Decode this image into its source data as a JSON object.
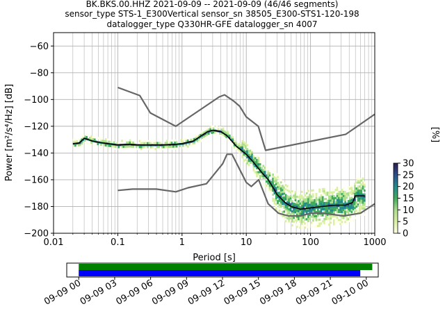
{
  "title_lines": [
    "BK.BKS.00.HHZ   2021-09-09 -- 2021-09-09  (46/46 segments)",
    "sensor_type STS-1_E300Vertical sensor_sn 38505_E300-STS1-120-198",
    "datalogger_type Q330HR-GFE datalogger_sn 4007"
  ],
  "chart_data": [
    {
      "type": "line",
      "subtype": "probabilistic-psd",
      "xlabel": "Period [s]",
      "ylabel": "Power [m²/s⁴/Hz] [dB]",
      "xscale": "log",
      "xlim": [
        0.01,
        1000
      ],
      "ylim": [
        -200,
        -50
      ],
      "xtick_labels": [
        "0.01",
        "0.1",
        "1",
        "10",
        "100",
        "1000"
      ],
      "xticks": [
        0.01,
        0.1,
        1,
        10,
        100,
        1000
      ],
      "yticks": [
        -60,
        -80,
        -100,
        -120,
        -140,
        -160,
        -180,
        -200
      ],
      "grid": true,
      "colorbar": {
        "label": "[%]",
        "ticks": [
          0,
          5,
          10,
          15,
          20,
          25,
          30
        ],
        "range": [
          0,
          30
        ],
        "colors": [
          "#ffffe5",
          "#d9f0a3",
          "#addd8e",
          "#41ab5d",
          "#238b8e",
          "#2c4f8c",
          "#2d1b4e"
        ]
      },
      "series": [
        {
          "name": "noise_model_high",
          "color": "#666666",
          "points": [
            [
              0.1,
              -91
            ],
            [
              0.22,
              -97
            ],
            [
              0.32,
              -110
            ],
            [
              0.8,
              -120
            ],
            [
              3.8,
              -98
            ],
            [
              4.6,
              -96.5
            ],
            [
              6.3,
              -101
            ],
            [
              7.9,
              -105
            ],
            [
              10,
              -113
            ],
            [
              15.4,
              -120
            ],
            [
              20,
              -138
            ],
            [
              354.8,
              -126
            ],
            [
              1000,
              -111
            ]
          ]
        },
        {
          "name": "noise_model_low",
          "color": "#666666",
          "points": [
            [
              0.1,
              -168
            ],
            [
              0.17,
              -167
            ],
            [
              0.4,
              -167
            ],
            [
              0.8,
              -169
            ],
            [
              1.24,
              -166
            ],
            [
              2.4,
              -163
            ],
            [
              4.3,
              -148
            ],
            [
              5,
              -141
            ],
            [
              6,
              -141
            ],
            [
              10,
              -162
            ],
            [
              12,
              -165
            ],
            [
              15.6,
              -160
            ],
            [
              21.9,
              -178
            ],
            [
              31.6,
              -185
            ],
            [
              45,
              -187
            ],
            [
              70,
              -187
            ],
            [
              101,
              -185
            ],
            [
              154,
              -185
            ],
            [
              328,
              -187
            ],
            [
              600,
              -185
            ],
            [
              1000,
              -178
            ]
          ]
        },
        {
          "name": "mode",
          "color": "#000000",
          "points": [
            [
              0.02,
              -133
            ],
            [
              0.025,
              -132.5
            ],
            [
              0.03,
              -129
            ],
            [
              0.04,
              -131
            ],
            [
              0.05,
              -132
            ],
            [
              0.07,
              -133
            ],
            [
              0.1,
              -134
            ],
            [
              0.15,
              -133.5
            ],
            [
              0.2,
              -134
            ],
            [
              0.3,
              -134
            ],
            [
              0.5,
              -134
            ],
            [
              0.8,
              -133.5
            ],
            [
              1,
              -133
            ],
            [
              1.5,
              -131
            ],
            [
              2,
              -127
            ],
            [
              2.5,
              -124
            ],
            [
              3,
              -123
            ],
            [
              4,
              -124
            ],
            [
              5,
              -127
            ],
            [
              7,
              -135
            ],
            [
              10,
              -141
            ],
            [
              13,
              -147
            ],
            [
              17,
              -154
            ],
            [
              22,
              -160
            ],
            [
              27,
              -167
            ],
            [
              30,
              -171
            ],
            [
              40,
              -177
            ],
            [
              50,
              -180
            ],
            [
              70,
              -182
            ],
            [
              100,
              -181
            ],
            [
              150,
              -180
            ],
            [
              250,
              -179
            ],
            [
              350,
              -179
            ],
            [
              450,
              -177
            ],
            [
              500,
              -172
            ],
            [
              700,
              -172
            ]
          ]
        }
      ]
    },
    {
      "type": "timeline",
      "xtick_labels": [
        "09-09 00",
        "09-09 03",
        "09-09 06",
        "09-09 09",
        "09-09 12",
        "09-09 15",
        "09-09 18",
        "09-09 21",
        "09-10 00"
      ],
      "xlim_hours": [
        -1,
        25
      ],
      "bars": [
        {
          "name": "data_coverage",
          "color": "#008000",
          "start_hours": 0,
          "end_hours": 24.5
        },
        {
          "name": "psd_segments",
          "color": "#0000ff",
          "start_hours": 0,
          "end_hours": 23.5
        }
      ]
    }
  ]
}
